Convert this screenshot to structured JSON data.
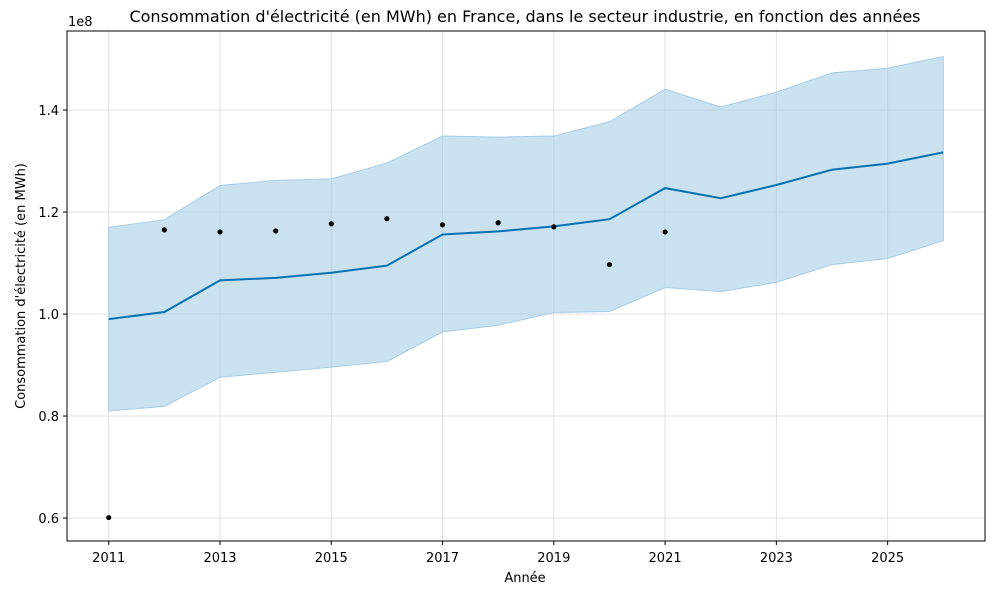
{
  "chart_data": {
    "type": "line",
    "title": "Consommation d'électricité (en MWh) en France, dans le secteur industrie, en fonction des années",
    "xlabel": "Année",
    "ylabel": "Consommation d'électricité (en MWh)",
    "y_scale_label": "1e8",
    "xlim": [
      2010.25,
      2026.75
    ],
    "ylim": [
      0.555,
      1.555
    ],
    "x_ticks": [
      2011,
      2013,
      2015,
      2017,
      2019,
      2021,
      2023,
      2025
    ],
    "y_ticks": [
      0.6,
      0.8,
      1.0,
      1.2,
      1.4
    ],
    "grid": true,
    "colors": {
      "forecast_line": "#0072B2",
      "interval_fill": "#a6cde6",
      "points": "#000000"
    },
    "series": [
      {
        "x": [
          2011,
          2012,
          2013,
          2014,
          2015,
          2016,
          2017,
          2018,
          2019,
          2020,
          2021
        ],
        "values": [
          0.601,
          1.165,
          1.161,
          1.163,
          1.177,
          1.187,
          1.175,
          1.179,
          1.171,
          1.097,
          1.161
        ]
      },
      {
        "x": [
          2011,
          2012,
          2013,
          2014,
          2015,
          2016,
          2017,
          2018,
          2019,
          2020,
          2021,
          2022,
          2023,
          2024,
          2025,
          2026
        ],
        "values": [
          0.99,
          1.004,
          1.066,
          1.071,
          1.081,
          1.095,
          1.156,
          1.162,
          1.172,
          1.186,
          1.247,
          1.227,
          1.253,
          1.283,
          1.295,
          1.317
        ],
        "lower": [
          0.81,
          0.819,
          0.876,
          0.886,
          0.896,
          0.907,
          0.965,
          0.978,
          1.003,
          1.005,
          1.052,
          1.044,
          1.062,
          1.097,
          1.109,
          1.144
        ],
        "upper": [
          1.17,
          1.185,
          1.252,
          1.262,
          1.265,
          1.296,
          1.349,
          1.347,
          1.349,
          1.377,
          1.441,
          1.406,
          1.435,
          1.473,
          1.482,
          1.505
        ]
      }
    ]
  }
}
